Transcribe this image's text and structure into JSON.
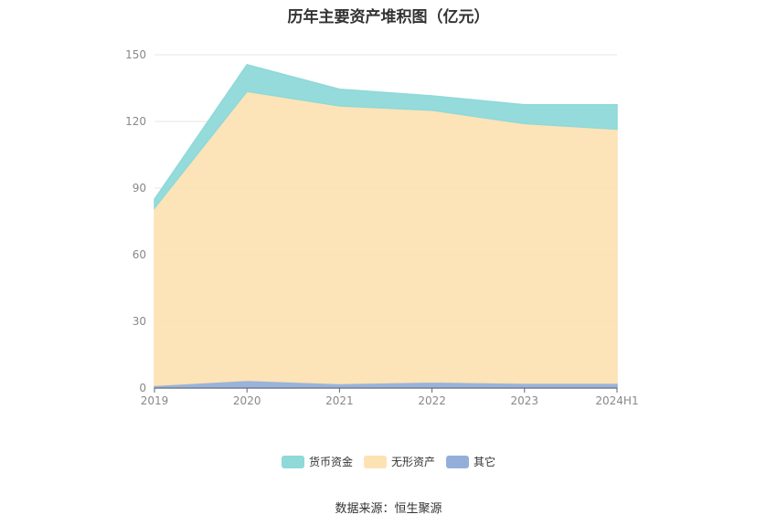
{
  "title": "历年主要资产堆积图（亿元）",
  "source": "数据来源：恒生聚源",
  "colors": {
    "货币资金": "#8fd9d9",
    "无形资产": "#fde2b4",
    "其它": "#93afd9"
  },
  "chart_data": {
    "type": "area",
    "stacked": true,
    "categories": [
      "2019",
      "2020",
      "2021",
      "2022",
      "2023",
      "2024H1"
    ],
    "ylim": [
      0,
      150
    ],
    "yticks": [
      0,
      30,
      60,
      90,
      120,
      150
    ],
    "grid": true,
    "legend_position": "bottom",
    "series": [
      {
        "name": "其它",
        "values": [
          1.2,
          3.5,
          2.0,
          2.8,
          2.2,
          2.2
        ]
      },
      {
        "name": "无形资产",
        "values": [
          79.8,
          130.0,
          125.0,
          122.2,
          116.8,
          114.3
        ]
      },
      {
        "name": "货币资金",
        "values": [
          4.0,
          12.0,
          7.5,
          6.5,
          8.5,
          11.0
        ]
      }
    ]
  }
}
